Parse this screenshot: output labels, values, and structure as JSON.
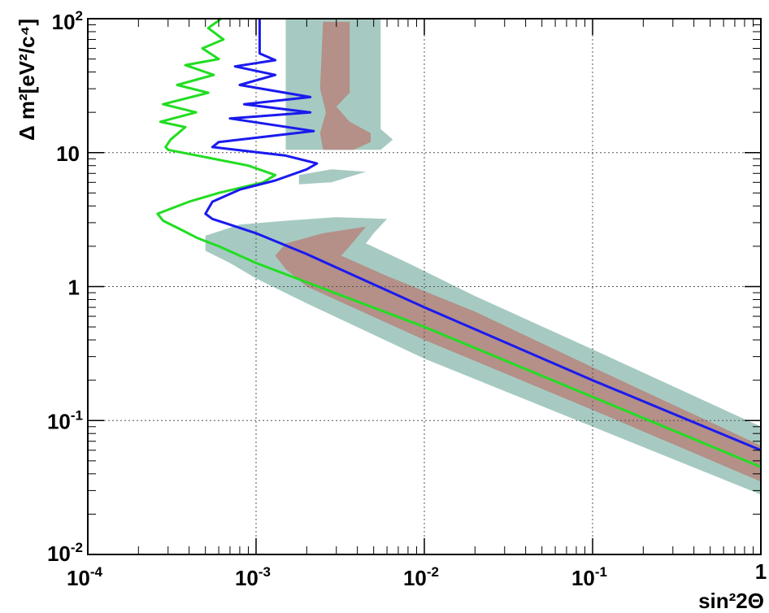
{
  "chart_data": {
    "type": "line",
    "x_scale": "log",
    "y_scale": "log",
    "xlim": [
      0.0001,
      1
    ],
    "ylim": [
      0.01,
      100
    ],
    "grid": true,
    "xlabel": "sin²2Θ",
    "ylabel": "Δ m²[eV²/c⁴]",
    "x_ticks": [
      {
        "value": 0.0001,
        "base": "10",
        "exp": "-4"
      },
      {
        "value": 0.001,
        "base": "10",
        "exp": "-3"
      },
      {
        "value": 0.01,
        "base": "10",
        "exp": "-2"
      },
      {
        "value": 0.1,
        "base": "10",
        "exp": "-1"
      },
      {
        "value": 1,
        "base": "1",
        "exp": ""
      }
    ],
    "y_ticks": [
      {
        "value": 0.01,
        "base": "10",
        "exp": "-2"
      },
      {
        "value": 0.1,
        "base": "10",
        "exp": "-1"
      },
      {
        "value": 1,
        "base": "1",
        "exp": ""
      },
      {
        "value": 10,
        "base": "10",
        "exp": ""
      },
      {
        "value": 100,
        "base": "10",
        "exp": "2"
      }
    ],
    "series": [
      {
        "color": "#22dd22",
        "points": [
          [
            0.00062,
            100
          ],
          [
            0.00052,
            85
          ],
          [
            0.00064,
            70
          ],
          [
            0.00048,
            60
          ],
          [
            0.0006,
            50
          ],
          [
            0.00038,
            45
          ],
          [
            0.00056,
            38
          ],
          [
            0.00034,
            32
          ],
          [
            0.00052,
            28
          ],
          [
            0.00028,
            23
          ],
          [
            0.00044,
            20
          ],
          [
            0.00027,
            17
          ],
          [
            0.00038,
            15.5
          ],
          [
            0.00031,
            12.5
          ],
          [
            0.00029,
            11
          ],
          [
            0.0003,
            10.5
          ],
          [
            0.0009,
            8
          ],
          [
            0.0013,
            6.8
          ],
          [
            0.0011,
            6
          ],
          [
            0.0006,
            5
          ],
          [
            0.0004,
            4.3
          ],
          [
            0.00026,
            3.5
          ],
          [
            0.00028,
            3.1
          ],
          [
            0.00035,
            2.7
          ],
          [
            0.00045,
            2.3
          ],
          [
            0.0006,
            2
          ],
          [
            0.001,
            1.5
          ],
          [
            0.01,
            0.5
          ],
          [
            0.1,
            0.15
          ],
          [
            1,
            0.045
          ]
        ]
      },
      {
        "color": "#1a1aee",
        "points": [
          [
            0.00105,
            100
          ],
          [
            0.00105,
            55
          ],
          [
            0.0013,
            49
          ],
          [
            0.00075,
            44
          ],
          [
            0.0013,
            38
          ],
          [
            0.0008,
            32
          ],
          [
            0.0021,
            26
          ],
          [
            0.00085,
            23
          ],
          [
            0.0021,
            20
          ],
          [
            0.0007,
            18
          ],
          [
            0.0022,
            14.5
          ],
          [
            0.0006,
            12
          ],
          [
            0.00055,
            11
          ],
          [
            0.0015,
            9.5
          ],
          [
            0.0023,
            8.3
          ],
          [
            0.002,
            7.5
          ],
          [
            0.0013,
            6.2
          ],
          [
            0.0008,
            5.3
          ],
          [
            0.00055,
            4.3
          ],
          [
            0.0005,
            3.5
          ],
          [
            0.00055,
            3.2
          ],
          [
            0.0007,
            2.9
          ],
          [
            0.001,
            2.5
          ],
          [
            0.002,
            1.75
          ],
          [
            0.01,
            0.7
          ],
          [
            0.1,
            0.2
          ],
          [
            1,
            0.06
          ]
        ]
      }
    ],
    "regions": [
      {
        "color": "#a6cac2",
        "polygons": [
          [
            [
              0.0015,
              100
            ],
            [
              0.0055,
              100
            ],
            [
              0.0055,
              15
            ],
            [
              0.0065,
              12.5
            ],
            [
              0.0055,
              10.5
            ],
            [
              0.0015,
              10.5
            ]
          ],
          [
            [
              0.0018,
              6.8
            ],
            [
              0.0028,
              7.5
            ],
            [
              0.0045,
              7.2
            ],
            [
              0.0028,
              6
            ],
            [
              0.0018,
              5.8
            ]
          ],
          [
            [
              0.0005,
              2.4
            ],
            [
              0.0008,
              2.9
            ],
            [
              0.0015,
              3.1
            ],
            [
              0.003,
              3.3
            ],
            [
              0.006,
              3.2
            ],
            [
              0.005,
              2.5
            ],
            [
              0.0045,
              2.1
            ],
            [
              0.008,
              1.5
            ],
            [
              0.02,
              0.85
            ],
            [
              0.1,
              0.34
            ],
            [
              1,
              0.09
            ],
            [
              1,
              0.028
            ],
            [
              0.1,
              0.09
            ],
            [
              0.01,
              0.29
            ],
            [
              0.002,
              0.75
            ],
            [
              0.001,
              1.15
            ],
            [
              0.0007,
              1.5
            ],
            [
              0.0005,
              1.85
            ]
          ]
        ]
      },
      {
        "color": "#b49088",
        "polygons": [
          [
            [
              0.0025,
              95
            ],
            [
              0.0036,
              95
            ],
            [
              0.0036,
              28
            ],
            [
              0.003,
              22
            ],
            [
              0.0036,
              17
            ],
            [
              0.0048,
              14
            ],
            [
              0.0048,
              12
            ],
            [
              0.0038,
              10.5
            ],
            [
              0.0025,
              10.5
            ],
            [
              0.0024,
              14
            ],
            [
              0.0026,
              20
            ],
            [
              0.0024,
              30
            ]
          ],
          [
            [
              0.0015,
              2.1
            ],
            [
              0.0025,
              2.5
            ],
            [
              0.0045,
              2.8
            ],
            [
              0.0036,
              2
            ],
            [
              0.0032,
              1.7
            ],
            [
              0.006,
              1.2
            ],
            [
              0.02,
              0.65
            ],
            [
              0.1,
              0.25
            ],
            [
              1,
              0.065
            ],
            [
              1,
              0.035
            ],
            [
              0.1,
              0.12
            ],
            [
              0.01,
              0.4
            ],
            [
              0.002,
              1.0
            ],
            [
              0.0015,
              1.35
            ],
            [
              0.0013,
              1.7
            ]
          ]
        ]
      }
    ]
  }
}
